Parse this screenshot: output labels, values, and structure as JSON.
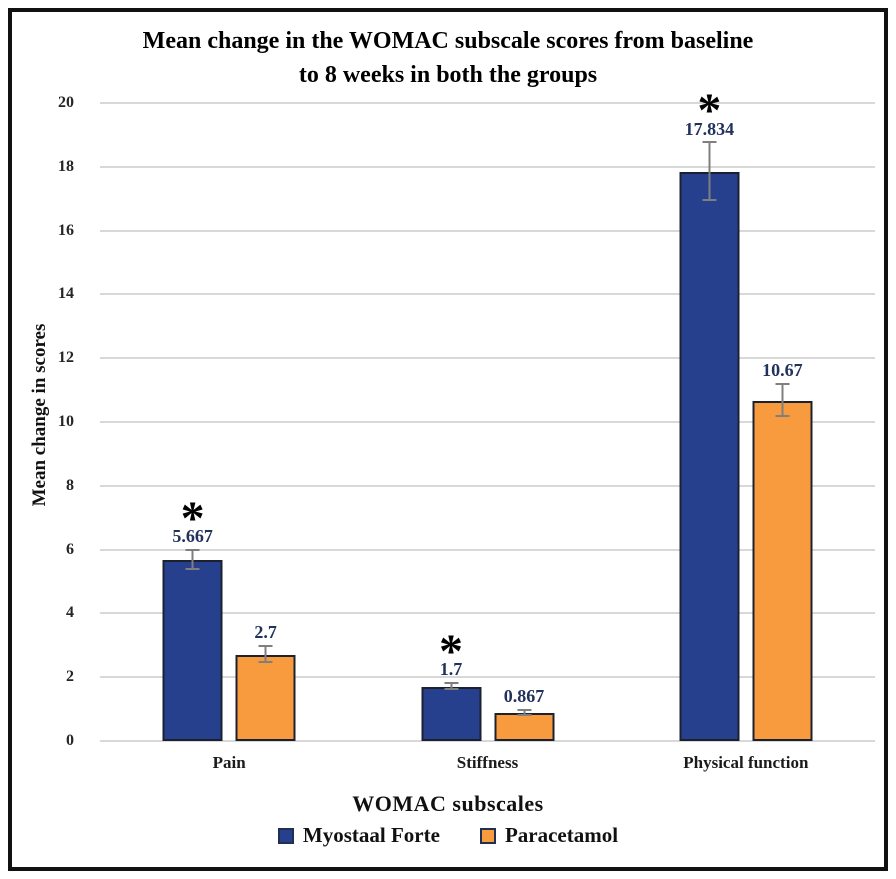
{
  "figure": {
    "title_line1": "Mean change in the WOMAC subscale scores from baseline",
    "title_line2": "to 8 weeks in both the groups"
  },
  "chart_data": {
    "type": "bar",
    "title": "Mean change in the WOMAC subscale scores from baseline to 8 weeks in both the groups",
    "xlabel": "WOMAC subscales",
    "ylabel": "Mean change in scores",
    "ylim": [
      0,
      20
    ],
    "ytick_step": 2,
    "yticks": [
      0,
      2,
      4,
      6,
      8,
      10,
      12,
      14,
      16,
      18,
      20
    ],
    "grid": "horizontal",
    "legend_position": "bottom-center",
    "significance_marker": "*",
    "categories": [
      "Pain",
      "Stiffness",
      "Physical function"
    ],
    "series": [
      {
        "name": "Myostaal Forte",
        "color": "#26408d",
        "values": [
          5.667,
          1.7,
          17.834
        ],
        "value_labels": [
          "5.667",
          "1.7",
          "17.834"
        ],
        "error_bars": [
          0.3,
          0.1,
          0.9
        ],
        "significant": [
          true,
          true,
          true
        ]
      },
      {
        "name": "Paracetamol",
        "color": "#f89b3e",
        "values": [
          2.7,
          0.867,
          10.67
        ],
        "value_labels": [
          "2.7",
          "0.867",
          "10.67"
        ],
        "error_bars": [
          0.25,
          0.07,
          0.5
        ],
        "significant": [
          false,
          false,
          false
        ]
      }
    ]
  },
  "colors": {
    "bar_border": "#1c2130",
    "gridline": "#d8d8d8",
    "error_bar": "#7f7f7f",
    "outer_border": "#111111",
    "value_label_text": "#21335c"
  }
}
